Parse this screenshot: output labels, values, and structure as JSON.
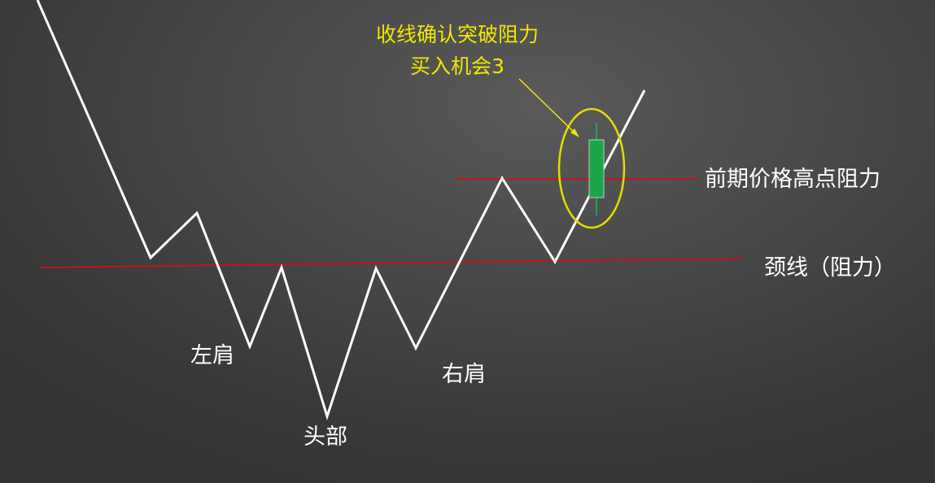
{
  "labels": {
    "left_shoulder": "左肩",
    "head": "头部",
    "right_shoulder": "右肩",
    "neckline": "颈线（阻力）",
    "prior_high": "前期价格高点阻力",
    "annotation_line1": "收线确认突破阻力",
    "annotation_line2": "买入机会3"
  },
  "colors": {
    "price_line": "#ffffff",
    "resistance_line": "#c0161a",
    "annotation": "#f2e600",
    "candle_body": "#1aa64a",
    "candle_wick": "#1aa64a"
  }
}
